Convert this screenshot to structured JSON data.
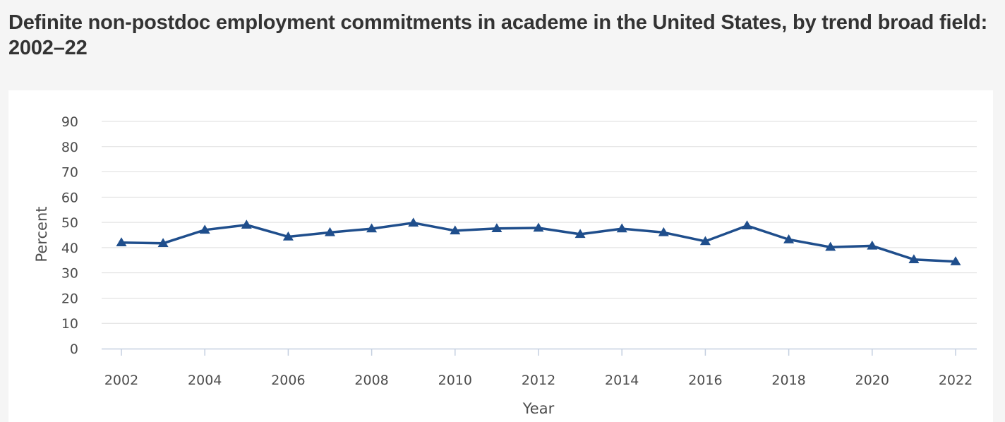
{
  "title": "Definite non-postdoc employment commitments in academe in the United States, by trend broad field: 2002–22",
  "chart_data": {
    "type": "line",
    "xlabel": "Year",
    "ylabel": "Percent",
    "ylim": [
      0,
      90
    ],
    "y_ticks": [
      0,
      10,
      20,
      30,
      40,
      50,
      60,
      70,
      80,
      90
    ],
    "x_tick_labels": [
      "2002",
      "2004",
      "2006",
      "2008",
      "2010",
      "2012",
      "2014",
      "2016",
      "2018",
      "2020",
      "2022"
    ],
    "grid": true,
    "legend": "none",
    "line_color": "#1f4e8c",
    "marker": "triangle",
    "series": [
      {
        "x": [
          2002,
          2003,
          2004,
          2005,
          2006,
          2007,
          2008,
          2009,
          2010,
          2011,
          2012,
          2013,
          2014,
          2015,
          2016,
          2017,
          2018,
          2019,
          2020,
          2021,
          2022
        ],
        "values": [
          42,
          41.7,
          47,
          49,
          44.3,
          46,
          47.5,
          49.8,
          46.7,
          47.6,
          47.8,
          45.3,
          47.5,
          46,
          42.5,
          48.7,
          43.2,
          40.2,
          40.7,
          35.3,
          34.5
        ]
      }
    ]
  }
}
